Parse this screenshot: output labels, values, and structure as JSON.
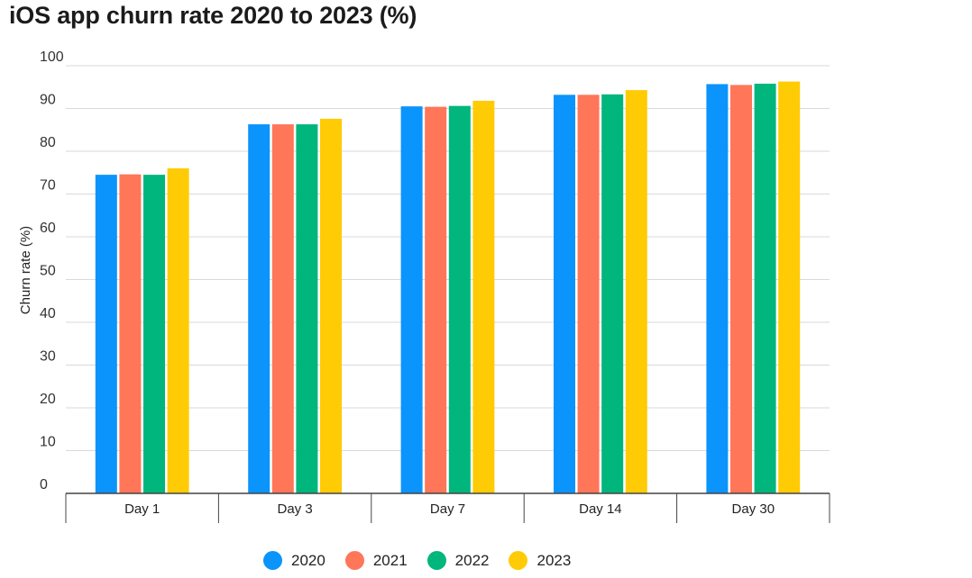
{
  "chart_data": {
    "type": "bar",
    "title": "iOS app churn rate 2020 to 2023 (%)",
    "xlabel": "",
    "ylabel": "Churn rate (%)",
    "ylim": [
      0,
      100
    ],
    "yticks": [
      0,
      10,
      20,
      30,
      40,
      50,
      60,
      70,
      80,
      90,
      100
    ],
    "grid": true,
    "legend_position": "bottom",
    "categories": [
      "Day 1",
      "Day 3",
      "Day 7",
      "Day 14",
      "Day 30"
    ],
    "series": [
      {
        "name": "2020",
        "color": "#0b94fb",
        "values": [
          74.5,
          86.3,
          90.5,
          93.2,
          95.7
        ]
      },
      {
        "name": "2021",
        "color": "#ff7659",
        "values": [
          74.6,
          86.3,
          90.4,
          93.2,
          95.5
        ]
      },
      {
        "name": "2022",
        "color": "#00b67c",
        "values": [
          74.5,
          86.3,
          90.6,
          93.3,
          95.8
        ]
      },
      {
        "name": "2023",
        "color": "#ffcb05",
        "values": [
          76.0,
          87.6,
          91.8,
          94.3,
          96.3
        ]
      }
    ]
  }
}
